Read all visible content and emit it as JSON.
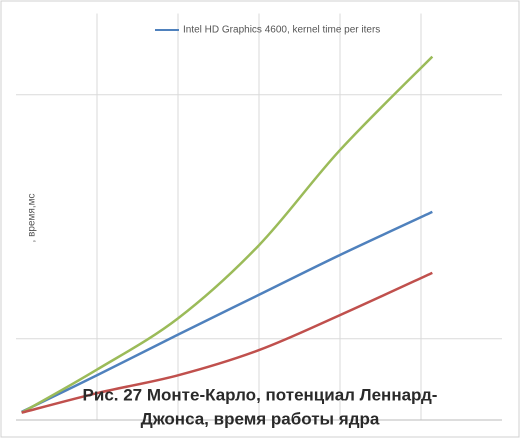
{
  "chart_data": {
    "type": "line",
    "y_label": ", время,мс",
    "caption": [
      "Рис. 27 Монте-Карло, потенциал Леннард-",
      "Джонса, время работы ядра"
    ],
    "x": [
      0.07,
      1,
      2,
      3,
      4,
      5.14
    ],
    "series": [
      {
        "name": "Intel HD Graphics 4600, kernel time per iters",
        "color": "#4f81bd",
        "values": [
          0.1,
          0.55,
          1.05,
          1.54,
          2.03,
          2.56
        ]
      },
      {
        "color": "#9bbb59",
        "values": [
          0.09,
          0.62,
          1.25,
          2.15,
          3.32,
          4.47
        ]
      },
      {
        "color": "#c0504d",
        "values": [
          0.09,
          0.33,
          0.55,
          0.86,
          1.29,
          1.81
        ]
      }
    ],
    "xlim": [
      0,
      6
    ],
    "ylim": [
      0,
      5
    ],
    "xticks": [
      1,
      2,
      3,
      4,
      5
    ],
    "yticks": [
      1,
      4
    ],
    "tick_labels": false,
    "grid": true,
    "legend": "top"
  }
}
